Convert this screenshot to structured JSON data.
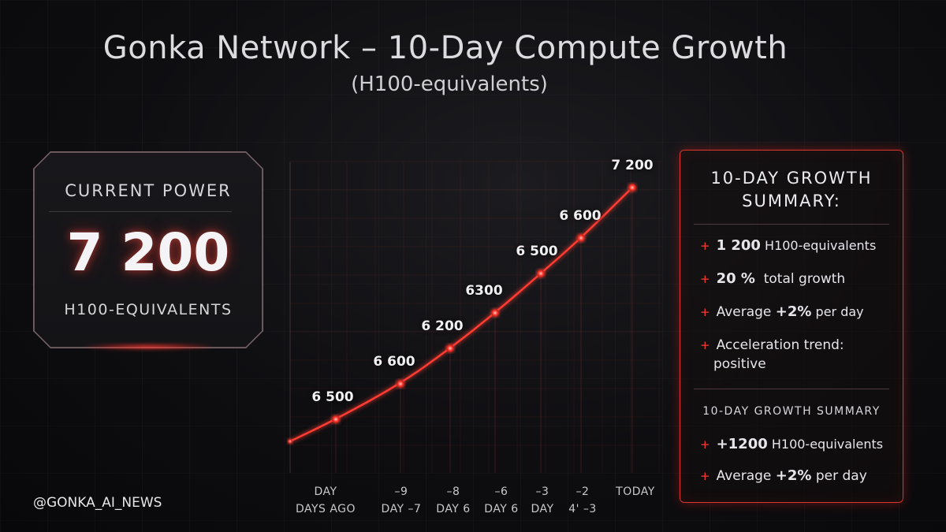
{
  "header": {
    "title": "Gonka Network – 10-Day Compute Growth",
    "subtitle": "(H100-equivalents)"
  },
  "power_card": {
    "label": "CURRENT POWER",
    "value": "7 200",
    "unit": "H100-EQUIVALENTS"
  },
  "handle": "@GONKA_AI_NEWS",
  "chart_data": {
    "type": "line",
    "title": "Gonka Network – 10-Day Compute Growth",
    "subtitle": "(H100-equivalents)",
    "x_tick_labels": [
      [
        "DAY",
        "DAYS AGO"
      ],
      [
        "–9",
        "DAY –7"
      ],
      [
        "–8",
        "DAY 6"
      ],
      [
        "–6",
        "DAY 6"
      ],
      [
        "–3",
        "DAY"
      ],
      [
        "–2",
        "4' –3"
      ],
      [
        "TODAY",
        ""
      ]
    ],
    "points": [
      {
        "value": null,
        "label": ""
      },
      {
        "value": 6500,
        "label": "6 500"
      },
      {
        "value": 6600,
        "label": "6 600"
      },
      {
        "value": 6200,
        "label": "6 200"
      },
      {
        "value": 6300,
        "label": "6300"
      },
      {
        "value": 6500,
        "label": "6 500"
      },
      {
        "value": 6600,
        "label": "6 600"
      },
      {
        "value": 7200,
        "label": "7 200"
      }
    ],
    "line_color": "#ff3b30",
    "grid": true,
    "legend": "none"
  },
  "summary": {
    "title_line1": "10-DAY GROWTH",
    "title_line2": "SUMMARY:",
    "items": [
      {
        "marker": "+",
        "strong": "1 200",
        "text": " H100-equivalents"
      },
      {
        "marker": "+",
        "strong": "20 %",
        "text": "  total growth"
      },
      {
        "marker": "+",
        "pre": "Average ",
        "strong": "+2%",
        "text": " per day"
      },
      {
        "marker": "+",
        "pre": "Acceleration trend:",
        "text2": "positive"
      }
    ],
    "sub_title": "10-DAY GROWTH SUMMARY",
    "sub_items": [
      {
        "marker": "+",
        "strong": "+1200",
        "text": " H100-equivalents"
      },
      {
        "marker": "+",
        "pre": "Average ",
        "strong": "+2%",
        "text": " per day"
      }
    ]
  }
}
